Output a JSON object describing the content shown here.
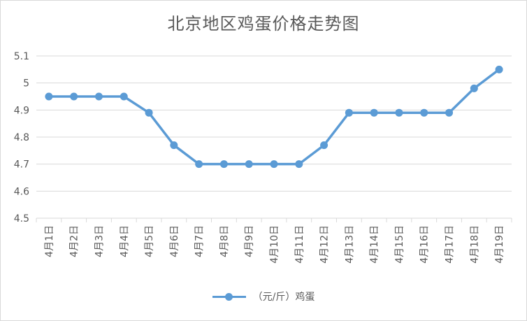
{
  "chart_data": {
    "type": "line",
    "title": "北京地区鸡蛋价格走势图",
    "categories": [
      "4月1日",
      "4月2日",
      "4月3日",
      "4月4日",
      "4月5日",
      "4月6日",
      "4月7日",
      "4月8日",
      "4月9日",
      "4月10日",
      "4月11日",
      "4月12日",
      "4月13日",
      "4月14日",
      "4月15日",
      "4月16日",
      "4月17日",
      "4月18日",
      "4月19日"
    ],
    "series": [
      {
        "name": "（元/斤）鸡蛋",
        "values": [
          4.95,
          4.95,
          4.95,
          4.95,
          4.89,
          4.77,
          4.7,
          4.7,
          4.7,
          4.7,
          4.7,
          4.77,
          4.89,
          4.89,
          4.89,
          4.89,
          4.89,
          4.98,
          5.05
        ],
        "color": "#5b9bd5"
      }
    ],
    "ylim": [
      4.5,
      5.1
    ],
    "yticks": [
      "4.5",
      "4.6",
      "4.7",
      "4.8",
      "4.9",
      "5",
      "5.1"
    ],
    "grid": true,
    "legend_position": "bottom"
  }
}
